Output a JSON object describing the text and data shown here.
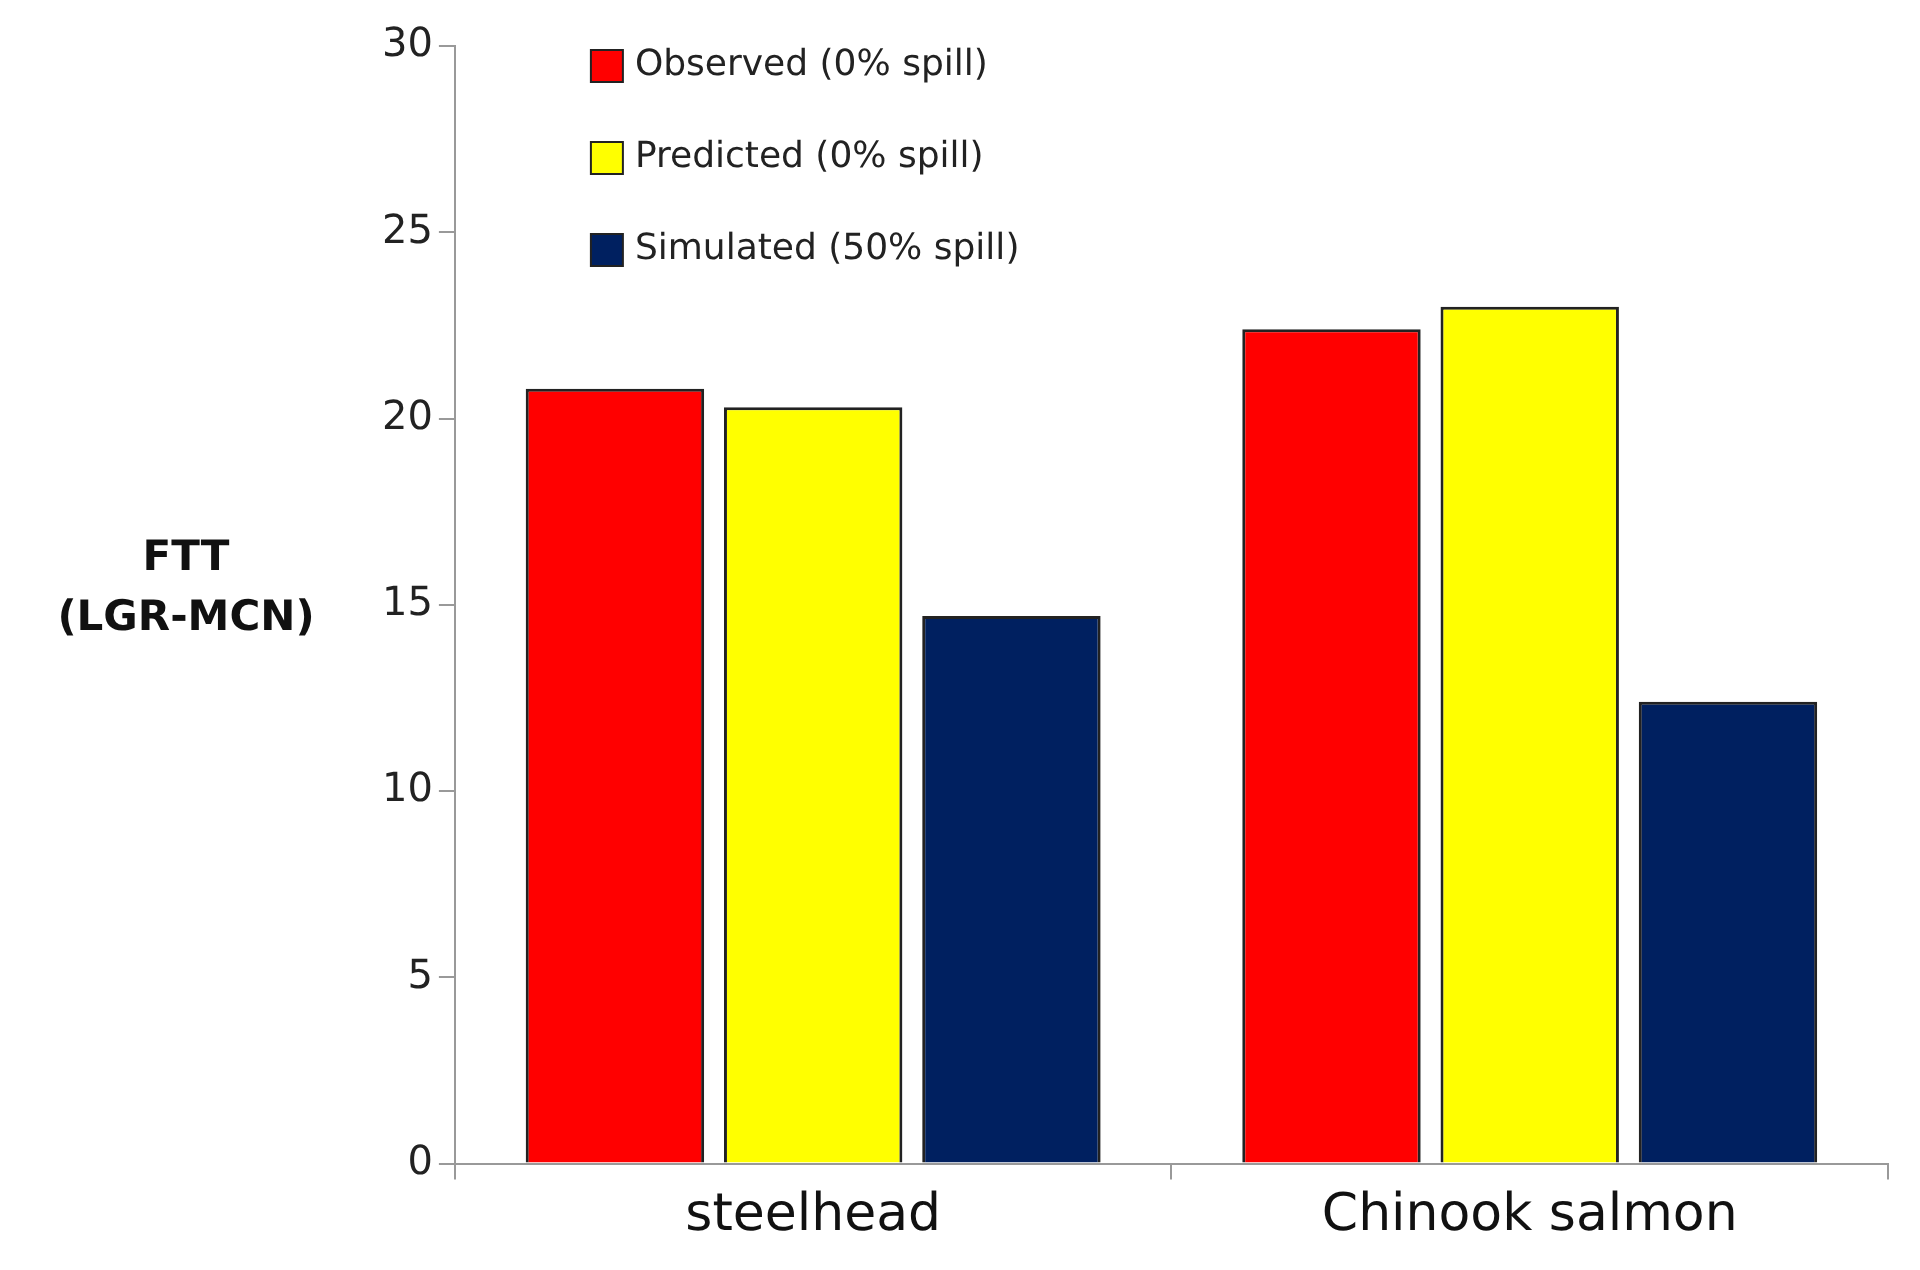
{
  "chart_data": {
    "type": "bar",
    "ylabel": "FTT\n(LGR-MCN)",
    "categories": [
      "steelhead",
      "Chinook salmon"
    ],
    "series": [
      {
        "name": "Observed (0% spill)",
        "color": "#ff0000",
        "values": [
          20.8,
          22.4
        ]
      },
      {
        "name": "Predicted (0% spill)",
        "color": "#ffff00",
        "values": [
          20.3,
          23.0
        ]
      },
      {
        "name": "Simulated (50% spill)",
        "color": "#002060",
        "values": [
          14.7,
          12.4
        ]
      }
    ],
    "ylim": [
      0,
      30
    ],
    "yticks": [
      0,
      5,
      10,
      15,
      20,
      25,
      30
    ],
    "grid": false,
    "legend": "top left"
  }
}
